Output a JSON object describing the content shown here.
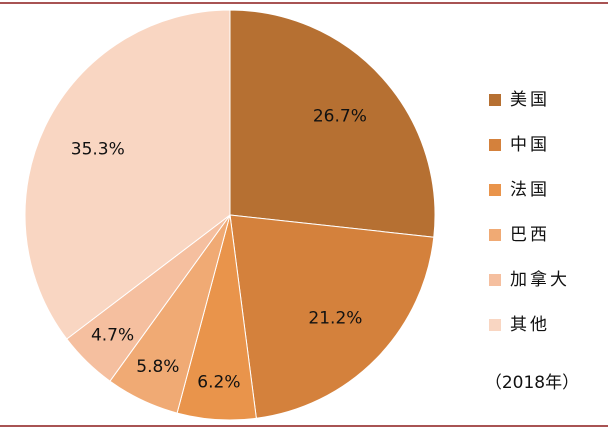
{
  "chart_data": {
    "type": "pie",
    "categories": [
      "美国",
      "中国",
      "法国",
      "巴西",
      "加拿大",
      "其他"
    ],
    "values": [
      26.7,
      21.2,
      6.2,
      5.8,
      4.7,
      35.3
    ],
    "value_labels": [
      "26.7%",
      "21.2%",
      "6.2%",
      "5.8%",
      "4.7%",
      "35.3%"
    ],
    "colors": [
      "#b67032",
      "#d4813c",
      "#e9944b",
      "#f0aa74",
      "#f5bf9f",
      "#f9d6c2"
    ],
    "annotation": "（2018年）"
  }
}
